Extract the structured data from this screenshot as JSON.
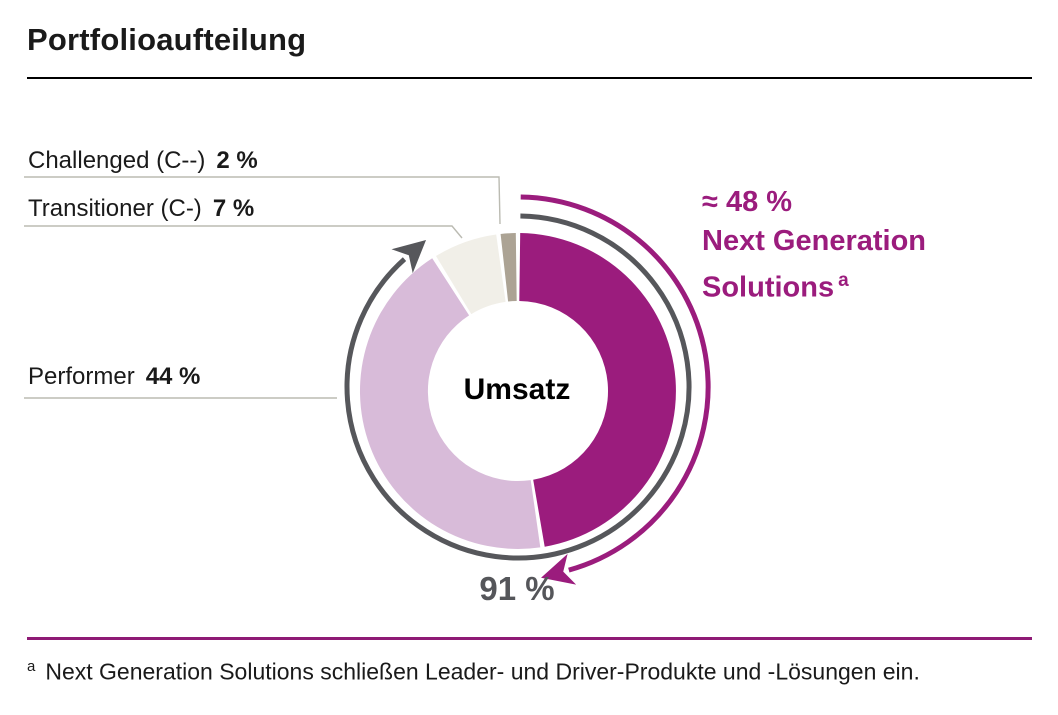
{
  "title": "Portfolioaufteilung",
  "colors": {
    "magenta": "#9B1C7D",
    "light_purple": "#D8BBD9",
    "cream": "#F1EFE8",
    "taupe": "#ACA394",
    "gray": "#56575B",
    "leader_line": "#BBBBB2",
    "bottom_rule": "#8E1A75",
    "text": "#1A1A1A"
  },
  "chart_data": {
    "type": "pie",
    "subtype": "donut",
    "title": "Portfolioaufteilung",
    "center_label": "Umsatz",
    "legend_position": "callouts",
    "segments": [
      {
        "name": "next-generation-solutions",
        "label": "Next Generation Solutions",
        "value": 48,
        "approx": true,
        "color_key": "magenta"
      },
      {
        "name": "performer",
        "label": "Performer",
        "value": 44,
        "color_key": "light_purple"
      },
      {
        "name": "transitioner",
        "label": "Transitioner (C-)",
        "value": 7,
        "color_key": "cream"
      },
      {
        "name": "challenged",
        "label": "Challenged (C--)",
        "value": 2,
        "color_key": "taupe"
      }
    ],
    "rings": [
      {
        "name": "umsatz-91-arc",
        "percent": 91,
        "label": "91 %",
        "color_key": "gray"
      },
      {
        "name": "next-generation-arc",
        "percent": 48,
        "label": "≈ 48 % Next Generation Solutions",
        "color_key": "magenta"
      }
    ]
  },
  "callouts": {
    "challenged": {
      "label": "Challenged (C--)",
      "value": "2 %"
    },
    "transitioner": {
      "label": "Transitioner (C-)",
      "value": "7 %"
    },
    "performer": {
      "label": "Performer",
      "value": "44 %"
    },
    "next_gen": {
      "value_line": "≈ 48 %",
      "name_line1": "Next Generation",
      "name_line2": "Solutions",
      "footnote_marker": "a"
    },
    "arc91": {
      "value": "91 %"
    },
    "center": {
      "label": "Umsatz"
    }
  },
  "footnote": {
    "marker": "a",
    "text": "Next Generation Solutions schließen Leader- und Driver-Produkte und -Lösungen ein."
  }
}
